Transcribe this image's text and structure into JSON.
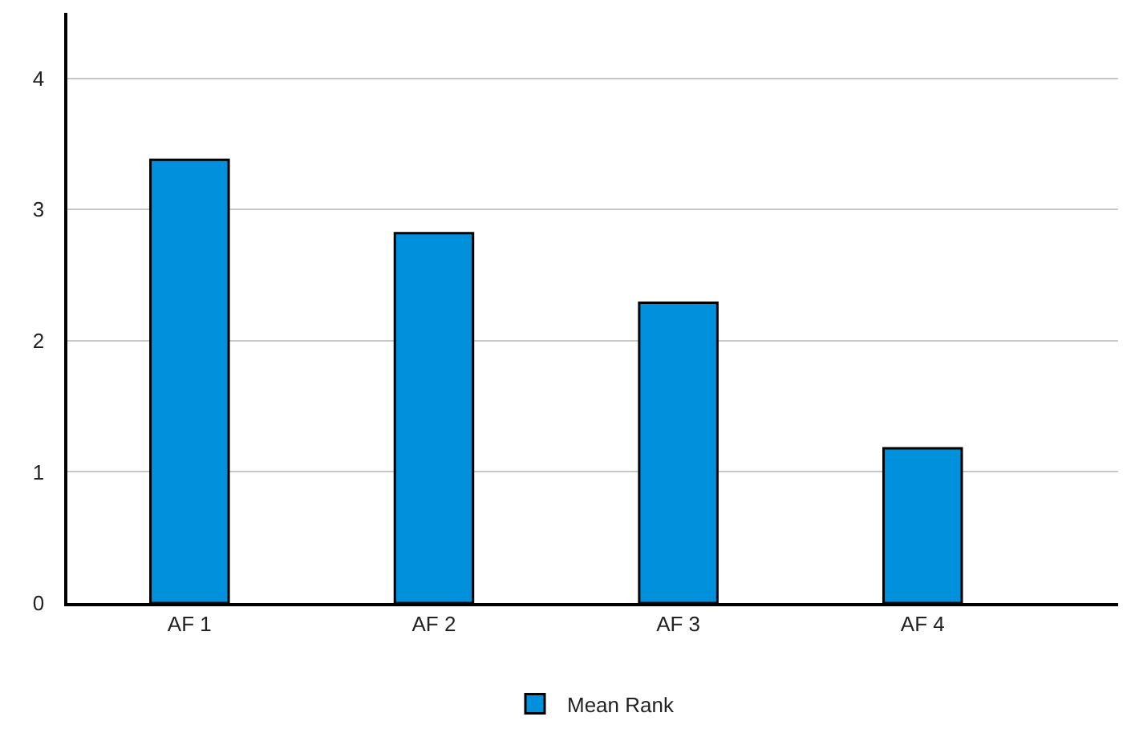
{
  "chart_data": {
    "type": "bar",
    "categories": [
      "AF 1",
      "AF 2",
      "AF 3",
      "AF 4"
    ],
    "series": [
      {
        "name": "Mean Rank",
        "color": "#0090dc",
        "values": [
          3.38,
          2.82,
          2.29,
          1.18
        ]
      }
    ],
    "ylim": [
      0,
      4.5
    ],
    "yticks": [
      0,
      1,
      2,
      3,
      4
    ],
    "grid": "y",
    "legend": "bottom"
  }
}
